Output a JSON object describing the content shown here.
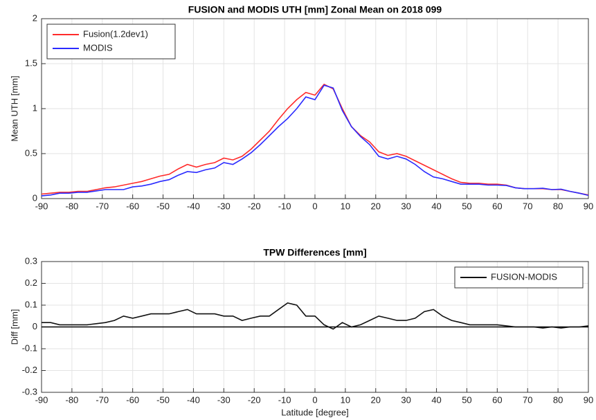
{
  "chart_data": [
    {
      "type": "line",
      "title": "FUSION and MODIS UTH [mm] Zonal Mean on 2018 099",
      "ylabel": "Mean UTH [mm]",
      "x": [
        -90,
        -87,
        -84,
        -81,
        -78,
        -75,
        -72,
        -69,
        -66,
        -63,
        -60,
        -57,
        -54,
        -51,
        -48,
        -45,
        -42,
        -39,
        -36,
        -33,
        -30,
        -27,
        -24,
        -21,
        -18,
        -15,
        -12,
        -9,
        -6,
        -3,
        0,
        3,
        6,
        9,
        12,
        15,
        18,
        21,
        24,
        27,
        30,
        33,
        36,
        39,
        42,
        45,
        48,
        51,
        54,
        57,
        60,
        63,
        66,
        69,
        72,
        75,
        78,
        81,
        84,
        87,
        90
      ],
      "series": [
        {
          "name": "Fusion(1.2dev1)",
          "color": "#ff2a2a",
          "values": [
            0.05,
            0.06,
            0.07,
            0.07,
            0.08,
            0.08,
            0.1,
            0.12,
            0.13,
            0.15,
            0.17,
            0.19,
            0.22,
            0.25,
            0.27,
            0.33,
            0.38,
            0.35,
            0.38,
            0.4,
            0.45,
            0.43,
            0.47,
            0.55,
            0.65,
            0.75,
            0.88,
            1.0,
            1.1,
            1.18,
            1.15,
            1.27,
            1.22,
            1.0,
            0.8,
            0.7,
            0.63,
            0.52,
            0.48,
            0.5,
            0.47,
            0.42,
            0.37,
            0.32,
            0.27,
            0.22,
            0.18,
            0.17,
            0.17,
            0.16,
            0.16,
            0.15,
            0.12,
            0.11,
            0.11,
            0.11,
            0.1,
            0.1,
            0.08,
            0.06,
            0.04
          ]
        },
        {
          "name": "MODIS",
          "color": "#2a2aff",
          "values": [
            0.03,
            0.04,
            0.06,
            0.06,
            0.07,
            0.07,
            0.085,
            0.1,
            0.1,
            0.1,
            0.13,
            0.14,
            0.16,
            0.19,
            0.21,
            0.26,
            0.3,
            0.29,
            0.32,
            0.34,
            0.4,
            0.38,
            0.44,
            0.51,
            0.6,
            0.7,
            0.8,
            0.89,
            1.0,
            1.13,
            1.1,
            1.26,
            1.23,
            0.98,
            0.8,
            0.69,
            0.6,
            0.47,
            0.44,
            0.47,
            0.44,
            0.38,
            0.3,
            0.24,
            0.22,
            0.19,
            0.16,
            0.16,
            0.16,
            0.15,
            0.15,
            0.145,
            0.12,
            0.11,
            0.11,
            0.115,
            0.1,
            0.105,
            0.08,
            0.06,
            0.035
          ]
        }
      ],
      "xlim": [
        -90,
        90
      ],
      "xticks": [
        -90,
        -80,
        -70,
        -60,
        -50,
        -40,
        -30,
        -20,
        -10,
        0,
        10,
        20,
        30,
        40,
        50,
        60,
        70,
        80,
        90
      ],
      "ylim": [
        0,
        2
      ],
      "yticks": [
        0,
        0.5,
        1,
        1.5,
        2
      ],
      "grid": true,
      "legend": "upper left"
    },
    {
      "type": "line",
      "title": "TPW Differences [mm]",
      "ylabel": "Diff [mm]",
      "xlabel": "Latitude [degree]",
      "x": [
        -90,
        -87,
        -84,
        -81,
        -78,
        -75,
        -72,
        -69,
        -66,
        -63,
        -60,
        -57,
        -54,
        -51,
        -48,
        -45,
        -42,
        -39,
        -36,
        -33,
        -30,
        -27,
        -24,
        -21,
        -18,
        -15,
        -12,
        -9,
        -6,
        -3,
        0,
        3,
        6,
        9,
        12,
        15,
        18,
        21,
        24,
        27,
        30,
        33,
        36,
        39,
        42,
        45,
        48,
        51,
        54,
        57,
        60,
        63,
        66,
        69,
        72,
        75,
        78,
        81,
        84,
        87,
        90
      ],
      "series": [
        {
          "name": "FUSION-MODIS",
          "color": "#111111",
          "values": [
            0.02,
            0.02,
            0.01,
            0.01,
            0.01,
            0.01,
            0.015,
            0.02,
            0.03,
            0.05,
            0.04,
            0.05,
            0.06,
            0.06,
            0.06,
            0.07,
            0.08,
            0.06,
            0.06,
            0.06,
            0.05,
            0.05,
            0.03,
            0.04,
            0.05,
            0.05,
            0.08,
            0.11,
            0.1,
            0.05,
            0.05,
            0.01,
            -0.01,
            0.02,
            0.0,
            0.01,
            0.03,
            0.05,
            0.04,
            0.03,
            0.03,
            0.04,
            0.07,
            0.08,
            0.05,
            0.03,
            0.02,
            0.01,
            0.01,
            0.01,
            0.01,
            0.005,
            0,
            0,
            0,
            -0.005,
            0,
            -0.005,
            0,
            0,
            0.005
          ]
        }
      ],
      "hline": 0,
      "xlim": [
        -90,
        90
      ],
      "xticks": [
        -90,
        -80,
        -70,
        -60,
        -50,
        -40,
        -30,
        -20,
        -10,
        0,
        10,
        20,
        30,
        40,
        50,
        60,
        70,
        80,
        90
      ],
      "ylim": [
        -0.3,
        0.3
      ],
      "yticks": [
        -0.3,
        -0.2,
        -0.1,
        0,
        0.1,
        0.2,
        0.3
      ],
      "grid": true,
      "legend": "upper right"
    }
  ]
}
